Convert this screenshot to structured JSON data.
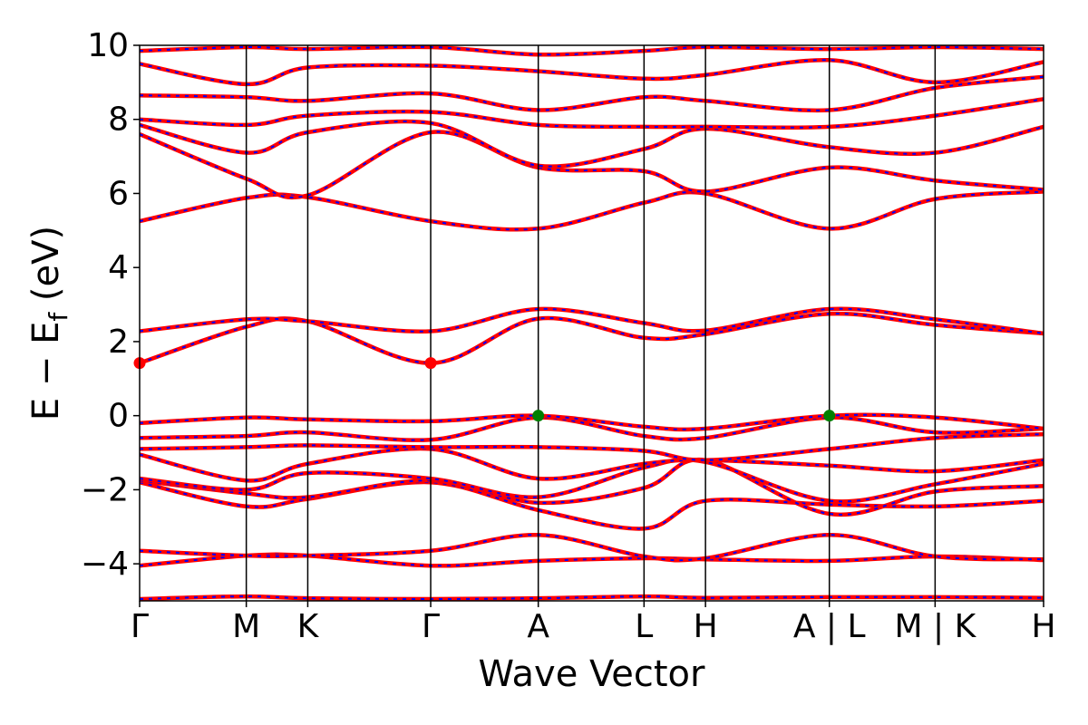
{
  "chart_data": {
    "type": "line",
    "xlabel": "Wave Vector",
    "ylabel": "E − E",
    "ylabel_sub": "f",
    "ylabel_unit": " (eV)",
    "ylim": [
      -5,
      10
    ],
    "yticks": [
      -4,
      -2,
      0,
      2,
      4,
      6,
      8,
      10
    ],
    "ytick_labels": [
      "−4",
      "−2",
      "0",
      "2",
      "4",
      "6",
      "8",
      "10"
    ],
    "xlim": [
      0,
      10
    ],
    "kpath_ticks": [
      {
        "x": 0.0,
        "label": "Γ"
      },
      {
        "x": 1.18,
        "label": "M"
      },
      {
        "x": 1.86,
        "label": "K"
      },
      {
        "x": 3.22,
        "label": "Γ"
      },
      {
        "x": 4.41,
        "label": "A"
      },
      {
        "x": 5.58,
        "label": "L"
      },
      {
        "x": 6.26,
        "label": "H"
      },
      {
        "x": 7.63,
        "label": "A | L"
      },
      {
        "x": 8.8,
        "label": "M | K"
      },
      {
        "x": 10.0,
        "label": "H"
      }
    ],
    "grid": false,
    "band_style": {
      "outer_color": "#ff0000",
      "inner_color": "#0000ff",
      "inner_dash": "dashed"
    },
    "markers": [
      {
        "x": 0.0,
        "y": 1.42,
        "color": "#ff0000",
        "meaning": "CBM"
      },
      {
        "x": 3.22,
        "y": 1.42,
        "color": "#ff0000",
        "meaning": "CBM"
      },
      {
        "x": 4.41,
        "y": 0.0,
        "color": "#008000",
        "meaning": "VBM"
      },
      {
        "x": 7.63,
        "y": 0.0,
        "color": "#008000",
        "meaning": "VBM"
      }
    ],
    "kpoints": [
      0.0,
      1.18,
      1.86,
      3.22,
      4.41,
      5.58,
      6.26,
      7.63,
      8.8,
      10.0
    ],
    "series": [
      {
        "values": [
          -4.95,
          -4.88,
          -4.93,
          -4.95,
          -4.93,
          -4.88,
          -4.92,
          -4.9,
          -4.9,
          -4.92
        ]
      },
      {
        "values": [
          -4.05,
          -3.78,
          -3.78,
          -4.05,
          -3.92,
          -3.85,
          -3.88,
          -3.92,
          -3.8,
          -3.9
        ]
      },
      {
        "values": [
          -3.65,
          -3.78,
          -3.78,
          -3.65,
          -3.22,
          -3.8,
          -3.85,
          -3.22,
          -3.8,
          -3.88
        ]
      },
      {
        "values": [
          -1.8,
          -2.45,
          -2.25,
          -1.8,
          -2.55,
          -3.05,
          -2.3,
          -2.4,
          -2.45,
          -2.3
        ]
      },
      {
        "values": [
          -1.75,
          -2.1,
          -2.2,
          -1.75,
          -2.35,
          -1.95,
          -1.2,
          -2.65,
          -2.05,
          -1.9
        ]
      },
      {
        "values": [
          -1.7,
          -2.0,
          -1.55,
          -1.7,
          -2.2,
          -1.4,
          -1.25,
          -2.3,
          -1.85,
          -1.3
        ]
      },
      {
        "values": [
          -1.05,
          -1.75,
          -1.3,
          -0.9,
          -1.7,
          -1.3,
          -1.2,
          -1.35,
          -1.5,
          -1.2
        ]
      },
      {
        "values": [
          -0.9,
          -0.85,
          -0.8,
          -0.85,
          -0.85,
          -0.95,
          -1.2,
          -0.9,
          -0.6,
          -0.5
        ]
      },
      {
        "values": [
          -0.6,
          -0.55,
          -0.45,
          -0.65,
          -0.05,
          -0.55,
          -0.6,
          -0.05,
          -0.45,
          -0.35
        ]
      },
      {
        "values": [
          -0.2,
          -0.05,
          -0.1,
          -0.15,
          0.0,
          -0.3,
          -0.35,
          0.0,
          -0.05,
          -0.35
        ]
      },
      {
        "values": [
          1.42,
          2.4,
          2.55,
          1.42,
          2.62,
          2.1,
          2.2,
          2.75,
          2.45,
          2.22
        ]
      },
      {
        "values": [
          2.28,
          2.6,
          2.55,
          2.28,
          2.88,
          2.5,
          2.3,
          2.88,
          2.6,
          2.22
        ]
      },
      {
        "values": [
          5.25,
          5.88,
          5.9,
          5.25,
          5.05,
          5.75,
          6.0,
          5.05,
          5.85,
          6.05
        ]
      },
      {
        "values": [
          7.6,
          6.4,
          5.95,
          7.65,
          6.7,
          6.6,
          6.05,
          6.7,
          6.35,
          6.1
        ]
      },
      {
        "values": [
          7.85,
          7.1,
          7.65,
          7.9,
          6.75,
          7.2,
          7.75,
          7.25,
          7.1,
          7.8
        ]
      },
      {
        "values": [
          8.0,
          7.85,
          8.1,
          8.2,
          7.85,
          7.8,
          7.8,
          7.8,
          8.1,
          8.55
        ]
      },
      {
        "values": [
          8.65,
          8.6,
          8.5,
          8.7,
          8.25,
          8.6,
          8.5,
          8.25,
          8.85,
          9.15
        ]
      },
      {
        "values": [
          9.5,
          8.95,
          9.4,
          9.45,
          9.3,
          9.1,
          9.2,
          9.6,
          9.0,
          9.55
        ]
      },
      {
        "values": [
          9.85,
          9.95,
          9.9,
          9.95,
          9.75,
          9.85,
          9.95,
          9.9,
          9.95,
          9.9
        ]
      }
    ]
  }
}
